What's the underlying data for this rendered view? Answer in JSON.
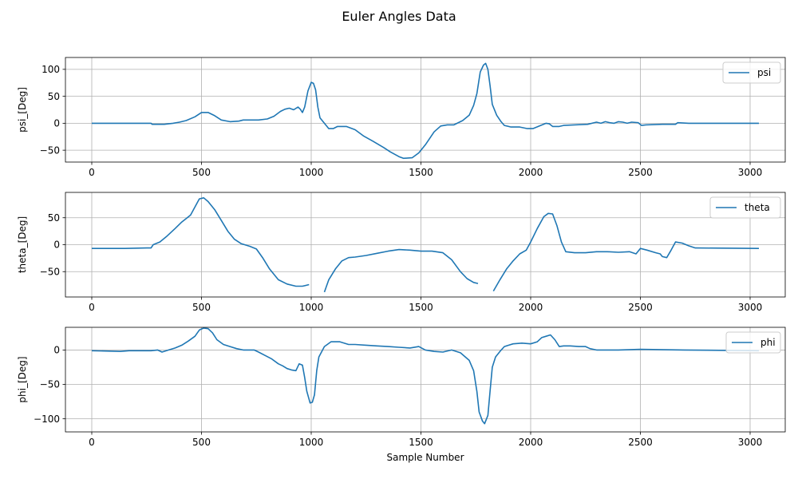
{
  "figure": {
    "suptitle": "Euler Angles Data"
  },
  "colors": {
    "line": "#1f77b4",
    "grid": "#b0b0b0",
    "axes": "#000000"
  },
  "chart_data": [
    {
      "type": "line",
      "title": "",
      "xlabel": "",
      "ylabel": "psi_[Deg]",
      "xlim": [
        -120,
        3160
      ],
      "ylim": [
        -72,
        122
      ],
      "xticks": [
        0,
        500,
        1000,
        1500,
        2000,
        2500,
        3000
      ],
      "yticks": [
        -50,
        0,
        50,
        100
      ],
      "grid": true,
      "legend": "top-right",
      "series": [
        {
          "name": "psi",
          "points": [
            [
              0,
              0
            ],
            [
              270,
              0
            ],
            [
              275,
              -2
            ],
            [
              330,
              -2
            ],
            [
              370,
              0
            ],
            [
              400,
              2
            ],
            [
              430,
              5
            ],
            [
              470,
              12
            ],
            [
              500,
              20
            ],
            [
              530,
              20
            ],
            [
              560,
              14
            ],
            [
              590,
              6
            ],
            [
              630,
              3
            ],
            [
              670,
              4
            ],
            [
              690,
              6
            ],
            [
              760,
              6
            ],
            [
              800,
              8
            ],
            [
              830,
              13
            ],
            [
              860,
              22
            ],
            [
              880,
              26
            ],
            [
              900,
              28
            ],
            [
              920,
              25
            ],
            [
              940,
              30
            ],
            [
              950,
              26
            ],
            [
              960,
              20
            ],
            [
              970,
              30
            ],
            [
              985,
              60
            ],
            [
              1000,
              76
            ],
            [
              1010,
              74
            ],
            [
              1020,
              62
            ],
            [
              1030,
              30
            ],
            [
              1040,
              10
            ],
            [
              1060,
              0
            ],
            [
              1080,
              -10
            ],
            [
              1100,
              -10
            ],
            [
              1120,
              -6
            ],
            [
              1160,
              -6
            ],
            [
              1200,
              -12
            ],
            [
              1240,
              -24
            ],
            [
              1280,
              -33
            ],
            [
              1330,
              -45
            ],
            [
              1360,
              -53
            ],
            [
              1400,
              -62
            ],
            [
              1420,
              -65
            ],
            [
              1460,
              -64
            ],
            [
              1490,
              -55
            ],
            [
              1520,
              -40
            ],
            [
              1560,
              -16
            ],
            [
              1590,
              -5
            ],
            [
              1620,
              -3
            ],
            [
              1650,
              -3
            ],
            [
              1690,
              5
            ],
            [
              1720,
              15
            ],
            [
              1740,
              33
            ],
            [
              1755,
              55
            ],
            [
              1770,
              95
            ],
            [
              1785,
              108
            ],
            [
              1795,
              111
            ],
            [
              1805,
              100
            ],
            [
              1815,
              70
            ],
            [
              1825,
              35
            ],
            [
              1845,
              15
            ],
            [
              1865,
              3
            ],
            [
              1880,
              -4
            ],
            [
              1910,
              -7
            ],
            [
              1950,
              -7
            ],
            [
              1985,
              -10
            ],
            [
              2010,
              -10
            ],
            [
              2040,
              -5
            ],
            [
              2070,
              0
            ],
            [
              2085,
              -1
            ],
            [
              2100,
              -6
            ],
            [
              2130,
              -6
            ],
            [
              2150,
              -4
            ],
            [
              2200,
              -3
            ],
            [
              2260,
              -2
            ],
            [
              2300,
              2
            ],
            [
              2320,
              0
            ],
            [
              2340,
              3
            ],
            [
              2360,
              1
            ],
            [
              2380,
              0
            ],
            [
              2400,
              3
            ],
            [
              2420,
              2
            ],
            [
              2440,
              0
            ],
            [
              2460,
              2
            ],
            [
              2490,
              1
            ],
            [
              2505,
              -4
            ],
            [
              2525,
              -3
            ],
            [
              2600,
              -2
            ],
            [
              2660,
              -2
            ],
            [
              2670,
              1
            ],
            [
              2720,
              0
            ],
            [
              2800,
              0
            ],
            [
              3040,
              0
            ]
          ]
        }
      ]
    },
    {
      "type": "line",
      "title": "",
      "xlabel": "",
      "ylabel": "theta_[Deg]",
      "xlim": [
        -120,
        3160
      ],
      "ylim": [
        -97,
        97
      ],
      "xticks": [
        0,
        500,
        1000,
        1500,
        2000,
        2500,
        3000
      ],
      "yticks": [
        -50,
        0,
        50
      ],
      "grid": true,
      "legend": "top-right",
      "series": [
        {
          "name": "theta",
          "points": [
            [
              0,
              -7
            ],
            [
              150,
              -7
            ],
            [
              250,
              -6
            ],
            [
              270,
              -6
            ],
            [
              280,
              0
            ],
            [
              310,
              5
            ],
            [
              340,
              15
            ],
            [
              380,
              30
            ],
            [
              410,
              42
            ],
            [
              435,
              50
            ],
            [
              450,
              55
            ],
            [
              470,
              70
            ],
            [
              490,
              85
            ],
            [
              510,
              87
            ],
            [
              530,
              80
            ],
            [
              560,
              65
            ],
            [
              590,
              45
            ],
            [
              620,
              25
            ],
            [
              650,
              10
            ],
            [
              680,
              2
            ],
            [
              720,
              -3
            ],
            [
              750,
              -8
            ],
            [
              780,
              -25
            ],
            [
              810,
              -45
            ],
            [
              850,
              -65
            ],
            [
              890,
              -73
            ],
            [
              930,
              -77
            ],
            [
              960,
              -77
            ],
            [
              990,
              -74
            ],
            [
              null,
              null
            ],
            [
              1060,
              -88
            ],
            [
              1080,
              -65
            ],
            [
              1110,
              -45
            ],
            [
              1140,
              -30
            ],
            [
              1170,
              -24
            ],
            [
              1200,
              -23
            ],
            [
              1250,
              -20
            ],
            [
              1300,
              -16
            ],
            [
              1350,
              -12
            ],
            [
              1400,
              -9
            ],
            [
              1450,
              -10
            ],
            [
              1500,
              -12
            ],
            [
              1550,
              -12
            ],
            [
              1600,
              -15
            ],
            [
              1640,
              -28
            ],
            [
              1680,
              -50
            ],
            [
              1710,
              -63
            ],
            [
              1740,
              -70
            ],
            [
              1760,
              -72
            ],
            [
              null,
              null
            ],
            [
              1830,
              -86
            ],
            [
              1860,
              -65
            ],
            [
              1890,
              -45
            ],
            [
              1920,
              -30
            ],
            [
              1950,
              -17
            ],
            [
              1980,
              -10
            ],
            [
              2000,
              5
            ],
            [
              2030,
              30
            ],
            [
              2060,
              52
            ],
            [
              2080,
              58
            ],
            [
              2100,
              57
            ],
            [
              2120,
              35
            ],
            [
              2140,
              5
            ],
            [
              2160,
              -13
            ],
            [
              2200,
              -15
            ],
            [
              2250,
              -15
            ],
            [
              2300,
              -13
            ],
            [
              2350,
              -13
            ],
            [
              2400,
              -14
            ],
            [
              2450,
              -13
            ],
            [
              2480,
              -17
            ],
            [
              2500,
              -7
            ],
            [
              2530,
              -10
            ],
            [
              2570,
              -15
            ],
            [
              2590,
              -17
            ],
            [
              2600,
              -22
            ],
            [
              2620,
              -24
            ],
            [
              2640,
              -10
            ],
            [
              2660,
              5
            ],
            [
              2690,
              3
            ],
            [
              2720,
              -2
            ],
            [
              2750,
              -6
            ],
            [
              3040,
              -7
            ]
          ]
        }
      ]
    },
    {
      "type": "line",
      "title": "",
      "xlabel": "Sample Number",
      "ylabel": "phi_[Deg]",
      "xlim": [
        -120,
        3160
      ],
      "ylim": [
        -119,
        33
      ],
      "xticks": [
        0,
        500,
        1000,
        1500,
        2000,
        2500,
        3000
      ],
      "yticks": [
        -100,
        -50,
        0
      ],
      "grid": true,
      "legend": "top-right",
      "series": [
        {
          "name": "phi",
          "points": [
            [
              0,
              -1
            ],
            [
              130,
              -2
            ],
            [
              170,
              -1
            ],
            [
              270,
              -1
            ],
            [
              300,
              0
            ],
            [
              320,
              -3
            ],
            [
              350,
              0
            ],
            [
              380,
              3
            ],
            [
              410,
              7
            ],
            [
              440,
              13
            ],
            [
              470,
              20
            ],
            [
              490,
              29
            ],
            [
              510,
              32
            ],
            [
              530,
              31
            ],
            [
              550,
              25
            ],
            [
              570,
              15
            ],
            [
              600,
              8
            ],
            [
              630,
              5
            ],
            [
              660,
              2
            ],
            [
              690,
              0
            ],
            [
              740,
              0
            ],
            [
              760,
              -3
            ],
            [
              790,
              -8
            ],
            [
              820,
              -13
            ],
            [
              850,
              -20
            ],
            [
              870,
              -23
            ],
            [
              890,
              -27
            ],
            [
              910,
              -29
            ],
            [
              930,
              -30
            ],
            [
              945,
              -20
            ],
            [
              960,
              -22
            ],
            [
              970,
              -40
            ],
            [
              980,
              -60
            ],
            [
              995,
              -77
            ],
            [
              1005,
              -76
            ],
            [
              1015,
              -65
            ],
            [
              1025,
              -30
            ],
            [
              1035,
              -10
            ],
            [
              1060,
              5
            ],
            [
              1090,
              12
            ],
            [
              1130,
              12
            ],
            [
              1170,
              8
            ],
            [
              1200,
              8
            ],
            [
              1250,
              7
            ],
            [
              1300,
              6
            ],
            [
              1350,
              5
            ],
            [
              1400,
              4
            ],
            [
              1450,
              3
            ],
            [
              1490,
              5
            ],
            [
              1520,
              0
            ],
            [
              1560,
              -2
            ],
            [
              1600,
              -3
            ],
            [
              1640,
              0
            ],
            [
              1680,
              -4
            ],
            [
              1720,
              -15
            ],
            [
              1740,
              -30
            ],
            [
              1755,
              -60
            ],
            [
              1765,
              -90
            ],
            [
              1780,
              -103
            ],
            [
              1790,
              -107
            ],
            [
              1805,
              -95
            ],
            [
              1815,
              -60
            ],
            [
              1825,
              -25
            ],
            [
              1840,
              -10
            ],
            [
              1860,
              -2
            ],
            [
              1880,
              5
            ],
            [
              1900,
              7
            ],
            [
              1920,
              9
            ],
            [
              1960,
              10
            ],
            [
              2000,
              9
            ],
            [
              2030,
              12
            ],
            [
              2050,
              18
            ],
            [
              2070,
              20
            ],
            [
              2090,
              22
            ],
            [
              2110,
              15
            ],
            [
              2130,
              5
            ],
            [
              2150,
              6
            ],
            [
              2180,
              6
            ],
            [
              2220,
              5
            ],
            [
              2250,
              5
            ],
            [
              2270,
              2
            ],
            [
              2300,
              0
            ],
            [
              2400,
              0
            ],
            [
              2500,
              1
            ],
            [
              2700,
              0
            ],
            [
              3040,
              -1
            ]
          ]
        }
      ]
    }
  ]
}
